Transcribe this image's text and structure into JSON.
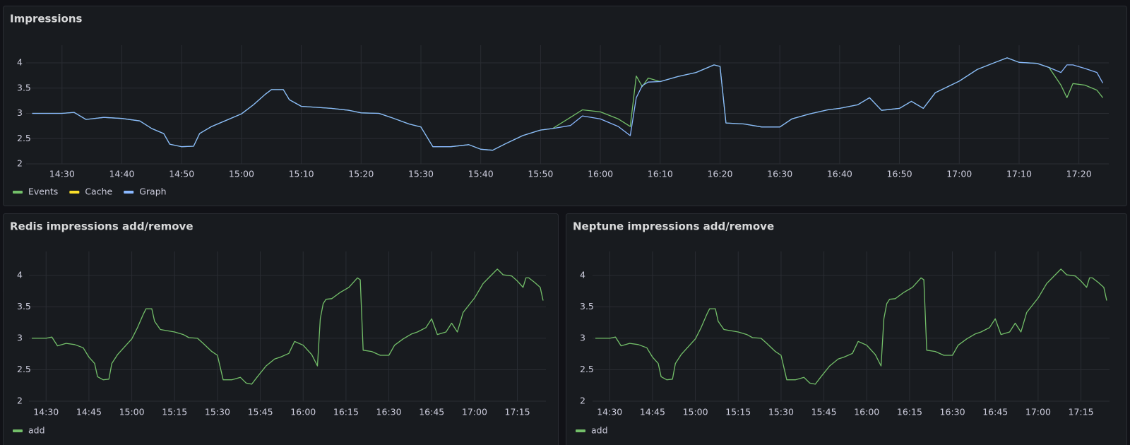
{
  "chart_data": [
    {
      "type": "line",
      "title": "Impressions",
      "x": [
        "14:25",
        "14:30",
        "14:32",
        "14:34",
        "14:37",
        "14:40",
        "14:43",
        "14:45",
        "14:47",
        "14:48",
        "14:50",
        "14:52",
        "14:53",
        "14:55",
        "14:58",
        "15:00",
        "15:02",
        "15:04",
        "15:05",
        "15:07",
        "15:08",
        "15:10",
        "15:15",
        "15:18",
        "15:20",
        "15:23",
        "15:25",
        "15:28",
        "15:30",
        "15:32",
        "15:35",
        "15:38",
        "15:40",
        "15:42",
        "15:44",
        "15:47",
        "15:50",
        "15:52",
        "15:55",
        "15:57",
        "16:00",
        "16:03",
        "16:05",
        "16:06",
        "16:07",
        "16:08",
        "16:10",
        "16:13",
        "16:16",
        "16:19",
        "16:20",
        "16:21",
        "16:24",
        "16:27",
        "16:30",
        "16:32",
        "16:35",
        "16:38",
        "16:40",
        "16:43",
        "16:45",
        "16:47",
        "16:50",
        "16:52",
        "16:54",
        "16:56",
        "17:00",
        "17:03",
        "17:06",
        "17:08",
        "17:10",
        "17:13",
        "17:15",
        "17:17",
        "17:18",
        "17:19",
        "17:21",
        "17:23",
        "17:24"
      ],
      "series": [
        {
          "name": "Events",
          "color": "#73bf69",
          "values": [
            3.0,
            3.0,
            3.02,
            2.88,
            2.92,
            2.9,
            2.85,
            2.7,
            2.6,
            2.39,
            2.34,
            2.35,
            2.6,
            2.74,
            2.89,
            2.99,
            3.17,
            3.38,
            3.47,
            3.47,
            3.27,
            3.14,
            3.1,
            3.06,
            3.01,
            3.0,
            2.92,
            2.79,
            2.73,
            2.34,
            2.34,
            2.38,
            2.29,
            2.27,
            2.39,
            2.56,
            2.67,
            2.7,
            2.92,
            3.07,
            3.03,
            2.89,
            2.74,
            3.74,
            3.53,
            3.7,
            3.63,
            3.73,
            3.81,
            3.96,
            3.93,
            2.81,
            2.79,
            2.73,
            2.73,
            2.89,
            2.99,
            3.07,
            3.1,
            3.17,
            3.31,
            3.06,
            3.1,
            3.24,
            3.1,
            3.41,
            3.64,
            3.87,
            4.01,
            4.1,
            4.01,
            3.99,
            3.91,
            3.56,
            3.31,
            3.59,
            3.56,
            3.46,
            3.31
          ]
        },
        {
          "name": "Cache",
          "color": "#fade2a",
          "values": [
            null,
            null,
            null,
            null,
            null,
            null,
            null,
            null,
            null,
            null,
            null,
            null,
            null,
            null,
            null,
            null,
            null,
            null,
            null,
            null,
            null,
            null,
            null,
            null,
            null,
            null,
            null,
            null,
            null,
            null,
            null,
            null,
            null,
            null,
            null,
            null,
            null,
            null,
            null,
            null,
            null,
            null,
            null,
            null,
            null,
            null,
            null,
            null,
            null,
            null,
            null,
            null,
            null,
            null,
            null,
            null,
            null,
            null,
            null,
            null,
            null,
            null,
            null,
            null,
            null,
            null,
            null,
            null,
            null,
            null,
            null,
            null,
            null,
            null,
            null,
            null,
            null,
            null,
            null
          ]
        },
        {
          "name": "Graph",
          "color": "#8ab8ff",
          "values": [
            3.0,
            3.0,
            3.02,
            2.88,
            2.92,
            2.9,
            2.85,
            2.7,
            2.6,
            2.39,
            2.34,
            2.35,
            2.6,
            2.74,
            2.89,
            2.99,
            3.17,
            3.38,
            3.47,
            3.47,
            3.27,
            3.14,
            3.1,
            3.06,
            3.01,
            3.0,
            2.92,
            2.79,
            2.73,
            2.34,
            2.34,
            2.38,
            2.29,
            2.27,
            2.39,
            2.56,
            2.67,
            2.7,
            2.76,
            2.95,
            2.89,
            2.74,
            2.56,
            3.31,
            3.55,
            3.62,
            3.63,
            3.73,
            3.81,
            3.96,
            3.93,
            2.81,
            2.79,
            2.73,
            2.73,
            2.89,
            2.99,
            3.07,
            3.1,
            3.17,
            3.31,
            3.06,
            3.1,
            3.24,
            3.1,
            3.41,
            3.64,
            3.87,
            4.01,
            4.1,
            4.01,
            3.99,
            3.91,
            3.81,
            3.96,
            3.96,
            3.89,
            3.81,
            3.6
          ]
        }
      ],
      "xlim": [
        "14:24",
        "17:25"
      ],
      "xticks": [
        "14:30",
        "14:40",
        "14:50",
        "15:00",
        "15:10",
        "15:20",
        "15:30",
        "15:40",
        "15:50",
        "16:00",
        "16:10",
        "16:20",
        "16:30",
        "16:40",
        "16:50",
        "17:00",
        "17:10",
        "17:20"
      ],
      "ylim": [
        2,
        4.35
      ],
      "yticks": [
        2,
        2.5,
        3,
        3.5,
        4
      ],
      "grid": true
    },
    {
      "type": "line",
      "title": "Redis impressions add/remove",
      "x": [
        "14:25",
        "14:30",
        "14:32",
        "14:34",
        "14:37",
        "14:40",
        "14:43",
        "14:45",
        "14:47",
        "14:48",
        "14:50",
        "14:52",
        "14:53",
        "14:55",
        "14:58",
        "15:00",
        "15:02",
        "15:04",
        "15:05",
        "15:07",
        "15:08",
        "15:10",
        "15:15",
        "15:18",
        "15:20",
        "15:23",
        "15:25",
        "15:28",
        "15:30",
        "15:32",
        "15:35",
        "15:38",
        "15:40",
        "15:42",
        "15:44",
        "15:47",
        "15:50",
        "15:52",
        "15:55",
        "15:57",
        "16:00",
        "16:03",
        "16:05",
        "16:06",
        "16:07",
        "16:08",
        "16:10",
        "16:13",
        "16:16",
        "16:19",
        "16:20",
        "16:21",
        "16:24",
        "16:27",
        "16:30",
        "16:32",
        "16:35",
        "16:38",
        "16:40",
        "16:43",
        "16:45",
        "16:47",
        "16:50",
        "16:52",
        "16:54",
        "16:56",
        "17:00",
        "17:03",
        "17:06",
        "17:08",
        "17:10",
        "17:13",
        "17:15",
        "17:17",
        "17:18",
        "17:19",
        "17:21",
        "17:23",
        "17:24"
      ],
      "series": [
        {
          "name": "add",
          "color": "#73bf69",
          "values": [
            3.0,
            3.0,
            3.02,
            2.88,
            2.92,
            2.9,
            2.85,
            2.7,
            2.6,
            2.39,
            2.34,
            2.35,
            2.6,
            2.74,
            2.89,
            2.99,
            3.17,
            3.38,
            3.47,
            3.47,
            3.27,
            3.14,
            3.1,
            3.06,
            3.01,
            3.0,
            2.92,
            2.79,
            2.73,
            2.34,
            2.34,
            2.38,
            2.29,
            2.27,
            2.39,
            2.56,
            2.67,
            2.7,
            2.76,
            2.95,
            2.89,
            2.74,
            2.56,
            3.31,
            3.55,
            3.62,
            3.63,
            3.73,
            3.81,
            3.96,
            3.93,
            2.81,
            2.79,
            2.73,
            2.73,
            2.89,
            2.99,
            3.07,
            3.1,
            3.17,
            3.31,
            3.06,
            3.1,
            3.24,
            3.1,
            3.41,
            3.64,
            3.87,
            4.01,
            4.1,
            4.01,
            3.99,
            3.91,
            3.81,
            3.96,
            3.96,
            3.89,
            3.81,
            3.6
          ]
        }
      ],
      "xlim": [
        "14:24",
        "17:25"
      ],
      "xticks": [
        "14:30",
        "14:45",
        "15:00",
        "15:15",
        "15:30",
        "15:45",
        "16:00",
        "16:15",
        "16:30",
        "16:45",
        "17:00",
        "17:15"
      ],
      "ylim": [
        2,
        4.38
      ],
      "yticks": [
        2,
        2.5,
        3,
        3.5,
        4
      ],
      "grid": true
    },
    {
      "type": "line",
      "title": "Neptune impressions add/remove",
      "x": [
        "14:25",
        "14:30",
        "14:32",
        "14:34",
        "14:37",
        "14:40",
        "14:43",
        "14:45",
        "14:47",
        "14:48",
        "14:50",
        "14:52",
        "14:53",
        "14:55",
        "14:58",
        "15:00",
        "15:02",
        "15:04",
        "15:05",
        "15:07",
        "15:08",
        "15:10",
        "15:15",
        "15:18",
        "15:20",
        "15:23",
        "15:25",
        "15:28",
        "15:30",
        "15:32",
        "15:35",
        "15:38",
        "15:40",
        "15:42",
        "15:44",
        "15:47",
        "15:50",
        "15:52",
        "15:55",
        "15:57",
        "16:00",
        "16:03",
        "16:05",
        "16:06",
        "16:07",
        "16:08",
        "16:10",
        "16:13",
        "16:16",
        "16:19",
        "16:20",
        "16:21",
        "16:24",
        "16:27",
        "16:30",
        "16:32",
        "16:35",
        "16:38",
        "16:40",
        "16:43",
        "16:45",
        "16:47",
        "16:50",
        "16:52",
        "16:54",
        "16:56",
        "17:00",
        "17:03",
        "17:06",
        "17:08",
        "17:10",
        "17:13",
        "17:15",
        "17:17",
        "17:18",
        "17:19",
        "17:21",
        "17:23",
        "17:24"
      ],
      "series": [
        {
          "name": "add",
          "color": "#73bf69",
          "values": [
            3.0,
            3.0,
            3.02,
            2.88,
            2.92,
            2.9,
            2.85,
            2.7,
            2.6,
            2.39,
            2.34,
            2.35,
            2.6,
            2.74,
            2.89,
            2.99,
            3.17,
            3.38,
            3.47,
            3.47,
            3.27,
            3.14,
            3.1,
            3.06,
            3.01,
            3.0,
            2.92,
            2.79,
            2.73,
            2.34,
            2.34,
            2.38,
            2.29,
            2.27,
            2.39,
            2.56,
            2.67,
            2.7,
            2.76,
            2.95,
            2.89,
            2.74,
            2.56,
            3.31,
            3.55,
            3.62,
            3.63,
            3.73,
            3.81,
            3.96,
            3.93,
            2.81,
            2.79,
            2.73,
            2.73,
            2.89,
            2.99,
            3.07,
            3.1,
            3.17,
            3.31,
            3.06,
            3.1,
            3.24,
            3.1,
            3.41,
            3.64,
            3.87,
            4.01,
            4.1,
            4.01,
            3.99,
            3.91,
            3.81,
            3.96,
            3.96,
            3.89,
            3.81,
            3.6
          ]
        }
      ],
      "xlim": [
        "14:24",
        "17:25"
      ],
      "xticks": [
        "14:30",
        "14:45",
        "15:00",
        "15:15",
        "15:30",
        "15:45",
        "16:00",
        "16:15",
        "16:30",
        "16:45",
        "17:00",
        "17:15"
      ],
      "ylim": [
        2,
        4.38
      ],
      "yticks": [
        2,
        2.5,
        3,
        3.5,
        4
      ],
      "grid": true
    }
  ]
}
